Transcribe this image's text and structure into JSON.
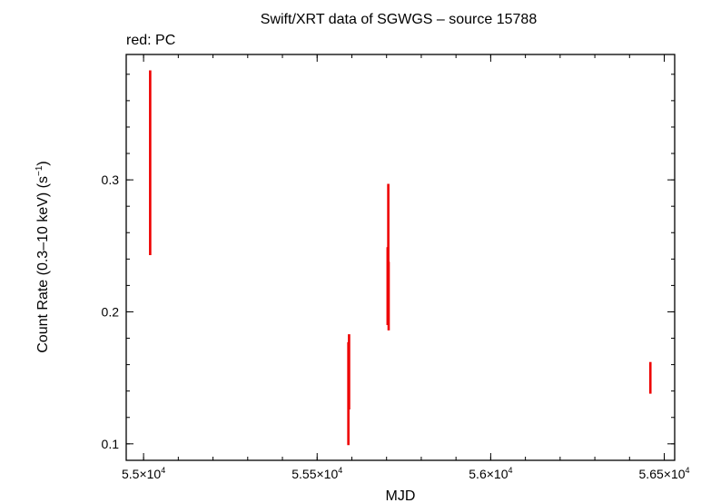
{
  "chart_data": {
    "type": "scatter",
    "title": "Swift/XRT data of SGWGS – source 15788",
    "subtitle": "red: PC",
    "xlabel": "MJD",
    "ylabel": "Count Rate (0.3–10 keV) (s",
    "ylabel_sup": "−1",
    "ylabel_end": ")",
    "xlim": [
      54950,
      56530
    ],
    "ylim": [
      0.0875,
      0.395
    ],
    "x_ticks": [
      {
        "value": 55000,
        "mantissa": "5.5×10",
        "exp": "4"
      },
      {
        "value": 55500,
        "mantissa": "5.55×10",
        "exp": "4"
      },
      {
        "value": 56000,
        "mantissa": "5.6×10",
        "exp": "4"
      },
      {
        "value": 56500,
        "mantissa": "5.65×10",
        "exp": "4"
      }
    ],
    "y_ticks": [
      {
        "value": 0.1,
        "label": "0.1"
      },
      {
        "value": 0.2,
        "label": "0.2"
      },
      {
        "value": 0.3,
        "label": "0.3"
      }
    ],
    "x_minor_step": 100,
    "y_minor_step": 0.02,
    "series": [
      {
        "color": "#ee0000",
        "points": [
          {
            "x": 55019,
            "y": 0.313,
            "ylo": 0.243,
            "yhi": 0.383
          },
          {
            "x": 55590,
            "y": 0.138,
            "ylo": 0.099,
            "yhi": 0.177
          },
          {
            "x": 55592,
            "y": 0.154,
            "ylo": 0.126,
            "yhi": 0.183
          },
          {
            "x": 55703,
            "y": 0.22,
            "ylo": 0.19,
            "yhi": 0.249
          },
          {
            "x": 55705,
            "y": 0.264,
            "ylo": 0.232,
            "yhi": 0.297
          },
          {
            "x": 55706,
            "y": 0.212,
            "ylo": 0.186,
            "yhi": 0.238
          },
          {
            "x": 56460,
            "y": 0.15,
            "ylo": 0.138,
            "yhi": 0.162
          }
        ]
      }
    ]
  }
}
